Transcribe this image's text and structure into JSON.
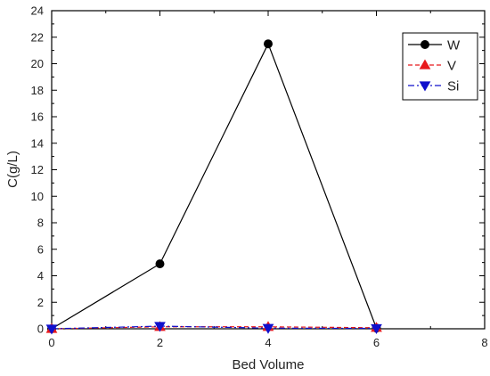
{
  "chart_data": {
    "type": "line",
    "title": "",
    "xlabel": "Bed Volume",
    "ylabel": "C(g/L)",
    "xlim": [
      0,
      8
    ],
    "ylim": [
      0,
      24
    ],
    "x_ticks": [
      0,
      2,
      4,
      6,
      8
    ],
    "y_ticks": [
      0,
      2,
      4,
      6,
      8,
      10,
      12,
      14,
      16,
      18,
      20,
      22,
      24
    ],
    "grid": false,
    "legend_position": "top-right",
    "series": [
      {
        "name": "W",
        "x": [
          0,
          2,
          4,
          6
        ],
        "y": [
          0,
          4.9,
          21.5,
          0.05
        ],
        "color": "#000000",
        "line_style": "solid",
        "marker": "circle"
      },
      {
        "name": "V",
        "x": [
          0,
          2,
          4,
          6
        ],
        "y": [
          0,
          0.15,
          0.15,
          0.08
        ],
        "color": "#e8191c",
        "line_style": "dashed",
        "marker": "triangle-up"
      },
      {
        "name": "Si",
        "x": [
          0,
          2,
          4,
          6
        ],
        "y": [
          0,
          0.2,
          0.05,
          0.03
        ],
        "color": "#1010cc",
        "line_style": "dashdot",
        "marker": "triangle-down"
      }
    ]
  }
}
